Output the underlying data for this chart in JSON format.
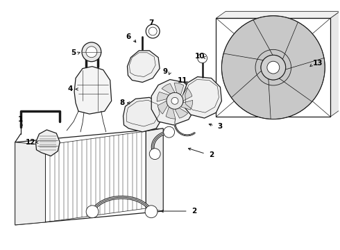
{
  "bg_color": "#ffffff",
  "line_color": "#1a1a1a",
  "label_color": "#000000",
  "figsize": [
    4.9,
    3.6
  ],
  "dpi": 100,
  "label_fontsize": 7.0,
  "arrow_scale": 6
}
